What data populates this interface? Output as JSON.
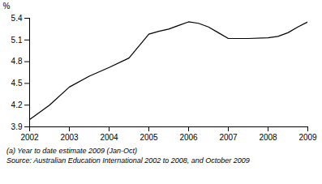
{
  "chart_data": {
    "type": "line",
    "x": [
      2002,
      2002.5,
      2003,
      2003.5,
      2004,
      2004.5,
      2005,
      2005.25,
      2005.5,
      2005.75,
      2006,
      2006.25,
      2006.5,
      2006.75,
      2007,
      2007.5,
      2008,
      2008.25,
      2008.5,
      2008.75,
      2009
    ],
    "values": [
      4.0,
      4.2,
      4.45,
      4.6,
      4.72,
      4.85,
      5.18,
      5.22,
      5.25,
      5.3,
      5.35,
      5.33,
      5.28,
      5.2,
      5.12,
      5.12,
      5.13,
      5.15,
      5.2,
      5.28,
      5.35
    ],
    "color": "#000000",
    "xlim": [
      2002,
      2009
    ],
    "ylim": [
      3.9,
      5.4
    ],
    "xticks": [
      2002,
      2003,
      2004,
      2005,
      2006,
      2007,
      2008,
      2009
    ],
    "yticks": [
      3.9,
      4.2,
      4.5,
      4.8,
      5.1,
      5.4
    ],
    "ylabel": "%",
    "annotations": [
      "(a) Year to date estimate 2009 (Jan-Oct)",
      "Source: Australian Education International 2002 to 2008, and October 2009"
    ]
  }
}
